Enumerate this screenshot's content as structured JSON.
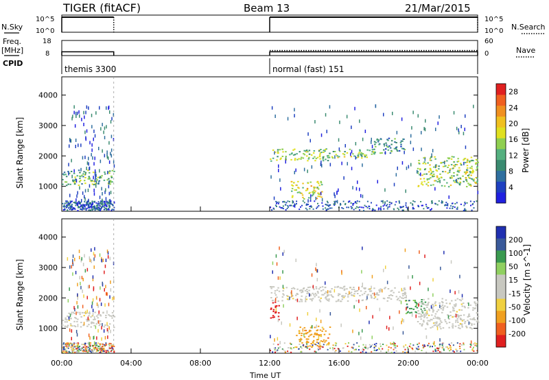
{
  "header": {
    "radar": "TIGER (fitACF)",
    "beam": "Beam 13",
    "date": "21/Mar/2015"
  },
  "left_labels": {
    "nsky": "N.Sky",
    "freq_line1": "Freq.",
    "freq_line2": "[MHz]",
    "cpid": "CPID"
  },
  "right_labels": {
    "nsearch": "N.Search",
    "nave": "Nave"
  },
  "cpid_segments": [
    {
      "label": "themis 3300",
      "start_hour": 0.0,
      "end_hour": 3.0
    },
    {
      "label": "normal (fast) 151",
      "start_hour": 12.0,
      "end_hour": 24.0
    }
  ],
  "colors": {
    "power_scale": [
      "#2020e0",
      "#1e40c0",
      "#2f6f9f",
      "#3a8a70",
      "#55b080",
      "#8fcf50",
      "#e0e020",
      "#f0c020",
      "#f09020",
      "#f06020",
      "#e02020"
    ],
    "velocity_scale": [
      "#e02020",
      "#f06020",
      "#f0a020",
      "#f0d040",
      "#c8c8c0",
      "#c8c8c0",
      "#90d060",
      "#3a9a50",
      "#3a5a9a",
      "#2030b0"
    ]
  },
  "chart_data": [
    {
      "type": "line",
      "title": "N.Sky / N.Search",
      "xlim": [
        0,
        24
      ],
      "y_tick_labels": [
        "10^5",
        "10^0"
      ],
      "y2_tick_labels": [
        "10^5",
        "10^0"
      ],
      "series": [
        {
          "segments": [
            [
              0.0,
              3.0
            ],
            [
              12.0,
              24.0
            ]
          ],
          "level": "near top (~10^5)"
        }
      ]
    },
    {
      "type": "line",
      "title": "Freq. / Nave",
      "xlim": [
        0,
        24
      ],
      "ylim": [
        8,
        18
      ],
      "y_tick_labels": [
        "18",
        "8"
      ],
      "y2_tick_labels": [
        "60",
        "0"
      ],
      "series": [
        {
          "segments": [
            [
              0.0,
              3.0
            ]
          ],
          "freq_mhz": 10.5
        },
        {
          "segments": [
            [
              12.0,
              24.0
            ]
          ],
          "freq_mhz": 10.5
        },
        {
          "segments": [
            [
              12.0,
              24.0
            ]
          ],
          "nave": 20
        }
      ]
    },
    {
      "type": "heatmap",
      "panel": "power",
      "ylabel": "Slant Range [km]",
      "xlim": [
        0,
        24
      ],
      "ylim": [
        180,
        4600
      ],
      "y_ticks": [
        1000,
        2000,
        3000,
        4000
      ],
      "colorbar": {
        "label": "Power [dB]",
        "ticks": [
          4,
          8,
          12,
          16,
          20,
          24,
          28
        ],
        "range": [
          0,
          30
        ]
      },
      "features": [
        {
          "t_start": 0.0,
          "t_end": 3.0,
          "range_km": [
            1050,
            1550
          ],
          "level_db": 12
        },
        {
          "t_start": 12.0,
          "t_end": 15.5,
          "range_km": [
            1850,
            2250
          ],
          "level_db": 14
        },
        {
          "t_start": 15.5,
          "t_end": 18.0,
          "range_km": [
            1950,
            2250
          ],
          "level_db": 16
        },
        {
          "t_start": 18.0,
          "t_end": 19.8,
          "range_km": [
            2100,
            2600
          ],
          "level_db": 10
        },
        {
          "t_start": 13.2,
          "t_end": 15.0,
          "range_km": [
            600,
            1200
          ],
          "level_db": 18
        },
        {
          "t_start": 20.5,
          "t_end": 24.0,
          "range_km": [
            1000,
            2000
          ],
          "level_db": 14
        }
      ]
    },
    {
      "type": "heatmap",
      "panel": "velocity",
      "ylabel": "Slant Range [km]",
      "xlabel": "Time UT",
      "xlim": [
        0,
        24
      ],
      "x_tick_labels": [
        "00:00",
        "04:00",
        "08:00",
        "12:00",
        "16:00",
        "20:00",
        "00:00"
      ],
      "ylim": [
        180,
        4600
      ],
      "y_ticks": [
        1000,
        2000,
        3000,
        4000
      ],
      "colorbar": {
        "label": "Velocity [m s^-1]",
        "ticks": [
          200,
          100,
          50,
          15,
          -15,
          -50,
          -100,
          -200
        ]
      },
      "features": [
        {
          "t_start": 0.0,
          "t_end": 3.0,
          "range_km": [
            1050,
            1550
          ],
          "velocity": 0
        },
        {
          "t_start": 12.0,
          "t_end": 12.5,
          "range_km": [
            1300,
            1900
          ],
          "velocity": -150
        },
        {
          "t_start": 12.0,
          "t_end": 19.8,
          "range_km": [
            1900,
            2400
          ],
          "velocity": 0
        },
        {
          "t_start": 19.8,
          "t_end": 21.0,
          "range_km": [
            1500,
            2000
          ],
          "velocity": 60
        },
        {
          "t_start": 20.5,
          "t_end": 24.0,
          "range_km": [
            1000,
            2000
          ],
          "velocity": 0
        },
        {
          "t_start": 13.5,
          "t_end": 15.5,
          "range_km": [
            400,
            1100
          ],
          "velocity": -40
        }
      ]
    }
  ]
}
